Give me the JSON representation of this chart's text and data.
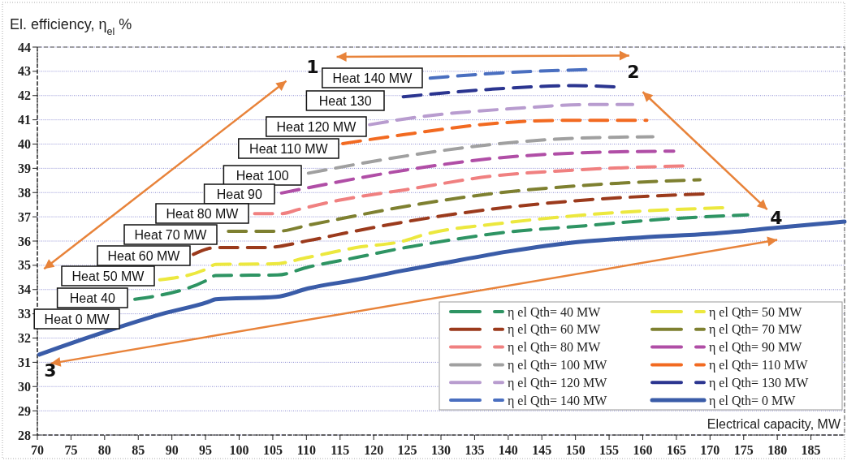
{
  "chart_data": {
    "type": "line",
    "ylabel": "El. efficiency, η$_{el}$ %",
    "xlabel": "Electrical capacity, MW",
    "xlim": [
      70,
      190
    ],
    "xticks": [
      70,
      75,
      80,
      85,
      90,
      95,
      100,
      105,
      110,
      115,
      120,
      125,
      130,
      135,
      140,
      145,
      150,
      155,
      160,
      165,
      170,
      175,
      180,
      185
    ],
    "ylim": [
      28,
      44
    ],
    "yticks": [
      28,
      29,
      30,
      31,
      32,
      33,
      34,
      35,
      36,
      37,
      38,
      39,
      40,
      41,
      42,
      43,
      44
    ],
    "grid": "y",
    "legend": "bottom right",
    "series": [
      {
        "name": "η el Qth= 40 MW",
        "color": "#2e9463",
        "line_style": "dashed",
        "x": [
          84.5,
          95.3,
          96.5,
          105.7,
          110.3,
          117.4,
          124.7,
          127.2,
          139.3,
          151.4,
          163.5,
          175.6
        ],
        "values": [
          33.6,
          34.4,
          34.58,
          34.6,
          34.93,
          35.32,
          35.73,
          35.85,
          36.35,
          36.63,
          36.91,
          37.08
        ]
      },
      {
        "name": "η el Qth= 50 MW",
        "color": "#ece83e",
        "line_style": "dashed",
        "x": [
          88.2,
          95.3,
          96.5,
          105.1,
          110.3,
          117.4,
          124.7,
          127.2,
          139.3,
          151.4,
          172.3
        ],
        "values": [
          34.4,
          34.87,
          35.04,
          35.06,
          35.33,
          35.73,
          36.02,
          36.24,
          36.74,
          37.08,
          37.38
        ]
      },
      {
        "name": "η el Qth= 60 MW",
        "color": "#9b3a1c",
        "line_style": "dashed",
        "x": [
          93.2,
          96.5,
          103.8,
          110.3,
          116.5,
          124.8,
          137.4,
          149.9,
          169.6
        ],
        "values": [
          35.45,
          35.73,
          35.73,
          36.02,
          36.37,
          36.8,
          37.31,
          37.66,
          37.95
        ]
      },
      {
        "name": "η el Qth= 70 MW",
        "color": "#7e8030",
        "line_style": "dashed",
        "x": [
          98.4,
          105.5,
          110.7,
          124.8,
          137.4,
          149.9,
          168.5
        ],
        "values": [
          36.4,
          36.4,
          36.68,
          37.43,
          37.95,
          38.27,
          38.53
        ]
      },
      {
        "name": "η el Qth= 80 MW",
        "color": "#f08080",
        "line_style": "dashed",
        "x": [
          102.3,
          106.3,
          108.8,
          114.8,
          124.8,
          137.4,
          149.9,
          166.7
        ],
        "values": [
          37.13,
          37.13,
          37.3,
          37.68,
          38.12,
          38.67,
          38.93,
          39.1
        ]
      },
      {
        "name": "η el Qth= 90 MW",
        "color": "#b04ea6",
        "line_style": "dashed",
        "x": [
          106.3,
          124.8,
          137.4,
          149.9,
          164.6
        ],
        "values": [
          37.98,
          38.93,
          39.4,
          39.63,
          39.71
        ]
      },
      {
        "name": "η el Qth= 100 MW",
        "color": "#a0a0a0",
        "line_style": "dashed",
        "x": [
          110.3,
          124.8,
          137.4,
          149.9,
          161.5
        ],
        "values": [
          38.8,
          39.51,
          39.98,
          40.24,
          40.3
        ]
      },
      {
        "name": "η el Qth= 110 MW",
        "color": "#f26a21",
        "line_style": "dashed",
        "x": [
          115.4,
          124.8,
          137.4,
          149.1,
          160.6
        ],
        "values": [
          40.02,
          40.4,
          40.84,
          40.98,
          40.98
        ]
      },
      {
        "name": "η el Qth= 120 MW",
        "color": "#b89ccf",
        "line_style": "dashed",
        "x": [
          119.4,
          125.7,
          141.6,
          152,
          158.5
        ],
        "values": [
          40.8,
          41.08,
          41.48,
          41.63,
          41.63
        ]
      },
      {
        "name": "η el Qth= 130 MW",
        "color": "#2b3590",
        "line_style": "dashed",
        "x": [
          124.4,
          137.4,
          149.9,
          156.4
        ],
        "values": [
          41.95,
          42.26,
          42.41,
          42.35
        ]
      },
      {
        "name": "η el Qth= 140 MW",
        "color": "#4a6fc0",
        "line_style": "dashed",
        "x": [
          128.4,
          140,
          151.6
        ],
        "values": [
          42.72,
          42.95,
          43.07
        ]
      },
      {
        "name": "η el Qth= 0 MW",
        "color": "#3a5ca8",
        "line_style": "solid",
        "x": [
          70.3,
          73.4,
          80.5,
          88.6,
          95.5,
          96.5,
          105.5,
          110.3,
          117.4,
          124.7,
          129.8,
          140,
          150,
          160,
          170,
          180,
          190
        ],
        "values": [
          31.32,
          31.63,
          32.3,
          33.0,
          33.5,
          33.6,
          33.7,
          34.05,
          34.4,
          34.8,
          35.06,
          35.57,
          35.95,
          36.15,
          36.3,
          36.55,
          36.8
        ]
      }
    ],
    "annotations": [
      "Heat 140 MW",
      "Heat 130",
      "Heat 120 MW",
      "Heat 110 MW",
      "Heat 100",
      "Heat 90",
      "Heat 80 MW",
      "Heat 70 MW",
      "Heat 60 MW",
      "Heat 50 MW",
      "Heat 40",
      "Heat 0 MW",
      "1",
      "2",
      "3",
      "4"
    ]
  }
}
